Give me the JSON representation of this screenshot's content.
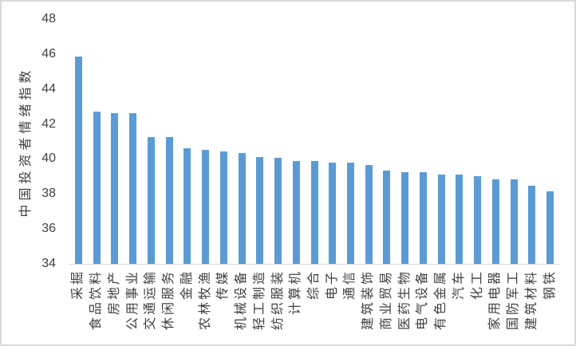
{
  "chart_data": {
    "type": "bar",
    "title": "",
    "xlabel": "",
    "ylabel": "中国投资者情绪指数",
    "ylim": [
      34,
      48
    ],
    "yticks": [
      34,
      36,
      38,
      40,
      42,
      44,
      46,
      48
    ],
    "grid": false,
    "legend_position": "none",
    "bar_color": "#5b9bd5",
    "axis_line_color": "#d9d9d9",
    "text_color": "#3f3f3f",
    "categories": [
      "采掘",
      "食品饮料",
      "房地产",
      "公用事业",
      "交通运输",
      "休闲服务",
      "金融",
      "农林牧渔",
      "传媒",
      "机械设备",
      "轻工制造",
      "纺织服装",
      "计算机",
      "综合",
      "电子",
      "通信",
      "建筑装饰",
      "商业贸易",
      "医药生物",
      "电气设备",
      "有色金属",
      "汽车",
      "化工",
      "家用电器",
      "国防军工",
      "建筑材料",
      "钢铁"
    ],
    "values": [
      45.85,
      42.7,
      42.6,
      42.6,
      41.25,
      41.25,
      40.6,
      40.5,
      40.45,
      40.35,
      40.1,
      40.05,
      39.9,
      39.9,
      39.8,
      39.8,
      39.65,
      39.35,
      39.25,
      39.25,
      39.1,
      39.1,
      39.0,
      38.85,
      38.85,
      38.45,
      38.15
    ]
  }
}
